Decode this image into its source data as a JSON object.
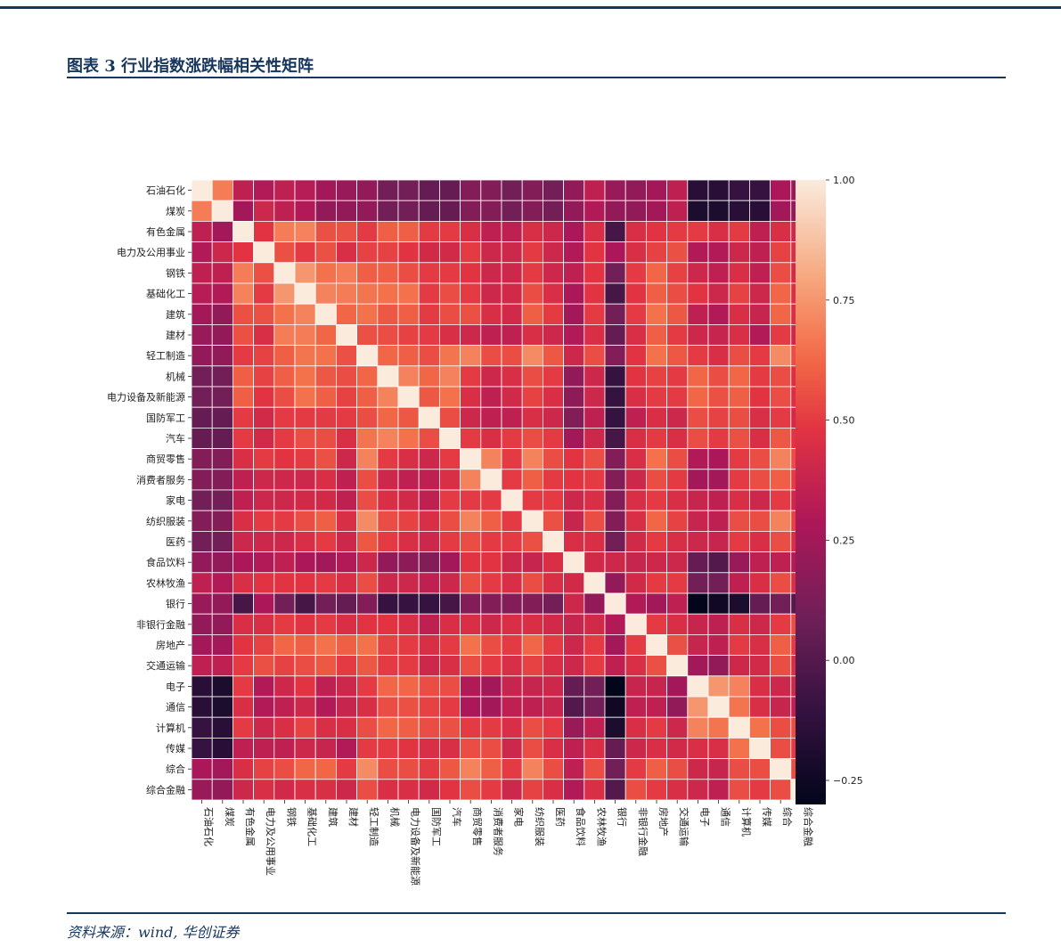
{
  "header": {
    "title": "图表 3   行业指数涨跌幅相关性矩阵"
  },
  "footer": {
    "source": "资料来源：wind, 华创证券"
  },
  "colors": {
    "brand": "#17365d",
    "cell_border": "#ffffff"
  },
  "chart_data": {
    "type": "heatmap",
    "title": "",
    "xlabel": "",
    "ylabel": "",
    "categories": [
      "石油石化",
      "煤炭",
      "有色金属",
      "电力及公用事业",
      "钢铁",
      "基础化工",
      "建筑",
      "建材",
      "轻工制造",
      "机械",
      "电力设备及新能源",
      "国防军工",
      "汽车",
      "商贸零售",
      "消费者服务",
      "家电",
      "纺织服装",
      "医药",
      "食品饮料",
      "农林牧渔",
      "银行",
      "非银行金融",
      "房地产",
      "交通运输",
      "电子",
      "通信",
      "计算机",
      "传媒",
      "综合",
      "综合金融"
    ],
    "colorbar": {
      "min": -0.3,
      "max": 1.0,
      "ticks": [
        1.0,
        0.75,
        0.5,
        0.25,
        0.0,
        -0.25
      ],
      "tick_labels": [
        "1.00",
        "0.75",
        "0.50",
        "0.25",
        "0.00",
        "−0.25"
      ],
      "colormap": "rocket"
    },
    "matrix": [
      [
        1.0,
        0.68,
        0.35,
        0.3,
        0.35,
        0.32,
        0.25,
        0.22,
        0.2,
        0.1,
        0.1,
        0.05,
        0.05,
        0.15,
        0.15,
        0.1,
        0.15,
        0.1,
        0.2,
        0.35,
        0.22,
        0.2,
        0.25,
        0.35,
        -0.15,
        -0.15,
        -0.1,
        -0.1,
        0.28,
        0.22
      ],
      [
        0.68,
        1.0,
        0.25,
        0.4,
        0.35,
        0.3,
        0.2,
        0.2,
        0.2,
        0.1,
        0.1,
        0.05,
        0.05,
        0.15,
        0.15,
        0.1,
        0.15,
        0.1,
        0.2,
        0.3,
        0.2,
        0.2,
        0.25,
        0.35,
        -0.2,
        -0.2,
        -0.15,
        -0.15,
        0.25,
        0.2
      ],
      [
        0.35,
        0.25,
        1.0,
        0.48,
        0.68,
        0.7,
        0.56,
        0.56,
        0.5,
        0.6,
        0.6,
        0.5,
        0.5,
        0.45,
        0.35,
        0.35,
        0.45,
        0.4,
        0.28,
        0.45,
        -0.05,
        0.45,
        0.48,
        0.5,
        0.5,
        0.45,
        0.5,
        0.35,
        0.45,
        0.4
      ],
      [
        0.3,
        0.4,
        0.48,
        1.0,
        0.56,
        0.5,
        0.56,
        0.45,
        0.52,
        0.52,
        0.48,
        0.42,
        0.42,
        0.5,
        0.4,
        0.4,
        0.5,
        0.4,
        0.3,
        0.48,
        0.28,
        0.45,
        0.52,
        0.56,
        0.3,
        0.3,
        0.4,
        0.35,
        0.52,
        0.45
      ],
      [
        0.35,
        0.35,
        0.68,
        0.56,
        1.0,
        0.75,
        0.65,
        0.68,
        0.6,
        0.6,
        0.55,
        0.5,
        0.5,
        0.48,
        0.4,
        0.4,
        0.5,
        0.4,
        0.35,
        0.48,
        0.1,
        0.5,
        0.62,
        0.52,
        0.4,
        0.35,
        0.45,
        0.35,
        0.55,
        0.42
      ],
      [
        0.32,
        0.3,
        0.7,
        0.5,
        0.75,
        1.0,
        0.7,
        0.68,
        0.66,
        0.65,
        0.65,
        0.5,
        0.55,
        0.5,
        0.4,
        0.42,
        0.55,
        0.45,
        0.28,
        0.48,
        -0.05,
        0.48,
        0.6,
        0.55,
        0.48,
        0.4,
        0.52,
        0.4,
        0.62,
        0.45
      ],
      [
        0.25,
        0.2,
        0.56,
        0.56,
        0.65,
        0.7,
        1.0,
        0.62,
        0.65,
        0.58,
        0.6,
        0.5,
        0.55,
        0.56,
        0.45,
        0.42,
        0.6,
        0.5,
        0.25,
        0.5,
        0.1,
        0.5,
        0.65,
        0.58,
        0.35,
        0.3,
        0.45,
        0.38,
        0.62,
        0.45
      ],
      [
        0.22,
        0.2,
        0.56,
        0.45,
        0.68,
        0.68,
        0.62,
        1.0,
        0.56,
        0.55,
        0.52,
        0.5,
        0.45,
        0.4,
        0.35,
        0.35,
        0.45,
        0.4,
        0.3,
        0.45,
        0.05,
        0.45,
        0.6,
        0.5,
        0.4,
        0.38,
        0.45,
        0.3,
        0.5,
        0.4
      ],
      [
        0.2,
        0.2,
        0.5,
        0.52,
        0.6,
        0.66,
        0.65,
        0.56,
        1.0,
        0.62,
        0.6,
        0.55,
        0.66,
        0.7,
        0.55,
        0.55,
        0.72,
        0.58,
        0.4,
        0.55,
        0.15,
        0.48,
        0.65,
        0.58,
        0.5,
        0.45,
        0.55,
        0.5,
        0.72,
        0.55
      ],
      [
        0.1,
        0.1,
        0.6,
        0.52,
        0.6,
        0.65,
        0.58,
        0.55,
        0.62,
        1.0,
        0.7,
        0.62,
        0.7,
        0.5,
        0.4,
        0.45,
        0.55,
        0.5,
        0.2,
        0.4,
        -0.1,
        0.48,
        0.52,
        0.5,
        0.62,
        0.55,
        0.62,
        0.5,
        0.55,
        0.45
      ],
      [
        0.1,
        0.1,
        0.6,
        0.48,
        0.55,
        0.65,
        0.6,
        0.52,
        0.6,
        0.7,
        1.0,
        0.58,
        0.65,
        0.45,
        0.35,
        0.42,
        0.52,
        0.45,
        0.18,
        0.4,
        -0.1,
        0.45,
        0.5,
        0.5,
        0.62,
        0.56,
        0.6,
        0.48,
        0.55,
        0.45
      ],
      [
        0.05,
        0.05,
        0.5,
        0.42,
        0.5,
        0.5,
        0.5,
        0.5,
        0.55,
        0.62,
        0.58,
        1.0,
        0.55,
        0.4,
        0.35,
        0.35,
        0.45,
        0.4,
        0.15,
        0.35,
        -0.1,
        0.35,
        0.45,
        0.4,
        0.55,
        0.52,
        0.55,
        0.45,
        0.5,
        0.42
      ],
      [
        0.05,
        0.05,
        0.5,
        0.42,
        0.5,
        0.55,
        0.55,
        0.45,
        0.66,
        0.7,
        0.65,
        0.55,
        1.0,
        0.5,
        0.45,
        0.5,
        0.55,
        0.5,
        0.25,
        0.4,
        -0.05,
        0.45,
        0.5,
        0.45,
        0.55,
        0.5,
        0.56,
        0.45,
        0.58,
        0.48
      ],
      [
        0.15,
        0.15,
        0.45,
        0.5,
        0.48,
        0.5,
        0.56,
        0.4,
        0.7,
        0.5,
        0.45,
        0.4,
        0.5,
        1.0,
        0.7,
        0.5,
        0.7,
        0.55,
        0.48,
        0.55,
        0.15,
        0.45,
        0.65,
        0.55,
        0.3,
        0.28,
        0.5,
        0.55,
        0.7,
        0.55
      ],
      [
        0.15,
        0.15,
        0.35,
        0.4,
        0.4,
        0.4,
        0.45,
        0.35,
        0.55,
        0.4,
        0.35,
        0.35,
        0.45,
        0.7,
        1.0,
        0.5,
        0.6,
        0.5,
        0.48,
        0.5,
        0.15,
        0.4,
        0.55,
        0.5,
        0.25,
        0.25,
        0.5,
        0.55,
        0.6,
        0.5
      ],
      [
        0.1,
        0.1,
        0.35,
        0.4,
        0.4,
        0.42,
        0.42,
        0.35,
        0.55,
        0.45,
        0.42,
        0.35,
        0.5,
        0.5,
        0.5,
        1.0,
        0.5,
        0.5,
        0.4,
        0.45,
        0.15,
        0.45,
        0.5,
        0.45,
        0.38,
        0.35,
        0.45,
        0.4,
        0.5,
        0.4
      ],
      [
        0.15,
        0.15,
        0.45,
        0.5,
        0.5,
        0.55,
        0.6,
        0.45,
        0.72,
        0.55,
        0.52,
        0.45,
        0.55,
        0.7,
        0.6,
        0.5,
        1.0,
        0.56,
        0.38,
        0.55,
        0.15,
        0.45,
        0.62,
        0.52,
        0.38,
        0.35,
        0.55,
        0.55,
        0.7,
        0.52
      ],
      [
        0.1,
        0.1,
        0.4,
        0.4,
        0.4,
        0.45,
        0.5,
        0.4,
        0.58,
        0.5,
        0.45,
        0.4,
        0.5,
        0.55,
        0.5,
        0.5,
        0.56,
        1.0,
        0.45,
        0.45,
        0.1,
        0.42,
        0.5,
        0.45,
        0.4,
        0.38,
        0.5,
        0.45,
        0.55,
        0.45
      ],
      [
        0.2,
        0.2,
        0.28,
        0.3,
        0.35,
        0.28,
        0.25,
        0.3,
        0.4,
        0.2,
        0.18,
        0.15,
        0.25,
        0.48,
        0.48,
        0.4,
        0.38,
        0.45,
        1.0,
        0.42,
        0.4,
        0.38,
        0.4,
        0.4,
        0.05,
        0.0,
        0.22,
        0.35,
        0.35,
        0.3
      ],
      [
        0.35,
        0.3,
        0.45,
        0.48,
        0.48,
        0.48,
        0.5,
        0.45,
        0.55,
        0.4,
        0.4,
        0.35,
        0.4,
        0.55,
        0.5,
        0.45,
        0.55,
        0.45,
        0.42,
        1.0,
        0.2,
        0.42,
        0.5,
        0.5,
        0.1,
        0.1,
        0.35,
        0.45,
        0.55,
        0.45
      ],
      [
        0.22,
        0.2,
        -0.05,
        0.28,
        0.1,
        -0.05,
        0.1,
        0.05,
        0.15,
        -0.1,
        -0.1,
        -0.1,
        -0.05,
        0.15,
        0.15,
        0.15,
        0.15,
        0.1,
        0.4,
        0.2,
        1.0,
        0.3,
        0.25,
        0.35,
        -0.3,
        -0.25,
        -0.2,
        0.05,
        0.1,
        0.0
      ],
      [
        0.2,
        0.2,
        0.45,
        0.45,
        0.5,
        0.48,
        0.5,
        0.45,
        0.48,
        0.48,
        0.45,
        0.35,
        0.45,
        0.45,
        0.4,
        0.45,
        0.45,
        0.42,
        0.38,
        0.42,
        0.3,
        1.0,
        0.5,
        0.45,
        0.38,
        0.35,
        0.45,
        0.4,
        0.5,
        0.55
      ],
      [
        0.25,
        0.25,
        0.48,
        0.52,
        0.62,
        0.6,
        0.65,
        0.6,
        0.65,
        0.52,
        0.5,
        0.45,
        0.5,
        0.65,
        0.55,
        0.5,
        0.62,
        0.5,
        0.4,
        0.5,
        0.25,
        0.5,
        1.0,
        0.56,
        0.38,
        0.35,
        0.5,
        0.45,
        0.6,
        0.5
      ],
      [
        0.35,
        0.35,
        0.5,
        0.56,
        0.52,
        0.55,
        0.58,
        0.5,
        0.58,
        0.5,
        0.5,
        0.4,
        0.45,
        0.55,
        0.5,
        0.45,
        0.52,
        0.45,
        0.4,
        0.5,
        0.35,
        0.45,
        0.56,
        1.0,
        0.25,
        0.2,
        0.4,
        0.42,
        0.55,
        0.45
      ],
      [
        -0.15,
        -0.2,
        0.5,
        0.3,
        0.4,
        0.48,
        0.35,
        0.4,
        0.5,
        0.62,
        0.62,
        0.55,
        0.55,
        0.3,
        0.25,
        0.38,
        0.38,
        0.4,
        0.05,
        0.1,
        -0.3,
        0.38,
        0.38,
        0.25,
        1.0,
        0.75,
        0.7,
        0.45,
        0.4,
        0.4
      ],
      [
        -0.15,
        -0.2,
        0.45,
        0.3,
        0.35,
        0.4,
        0.3,
        0.38,
        0.45,
        0.55,
        0.56,
        0.52,
        0.5,
        0.28,
        0.25,
        0.35,
        0.35,
        0.38,
        0.0,
        0.1,
        -0.25,
        0.35,
        0.35,
        0.2,
        0.75,
        1.0,
        0.66,
        0.45,
        0.38,
        0.35
      ],
      [
        -0.1,
        -0.15,
        0.5,
        0.4,
        0.45,
        0.52,
        0.45,
        0.45,
        0.55,
        0.62,
        0.6,
        0.55,
        0.56,
        0.5,
        0.5,
        0.45,
        0.55,
        0.5,
        0.22,
        0.35,
        -0.2,
        0.45,
        0.5,
        0.4,
        0.7,
        0.66,
        1.0,
        0.65,
        0.55,
        0.55
      ],
      [
        -0.1,
        -0.15,
        0.35,
        0.35,
        0.35,
        0.4,
        0.38,
        0.3,
        0.5,
        0.5,
        0.48,
        0.45,
        0.45,
        0.55,
        0.55,
        0.4,
        0.55,
        0.45,
        0.35,
        0.45,
        0.05,
        0.4,
        0.45,
        0.42,
        0.45,
        0.45,
        0.65,
        1.0,
        0.55,
        0.5
      ],
      [
        0.28,
        0.25,
        0.45,
        0.52,
        0.55,
        0.62,
        0.62,
        0.5,
        0.72,
        0.55,
        0.55,
        0.5,
        0.58,
        0.7,
        0.6,
        0.5,
        0.7,
        0.55,
        0.35,
        0.55,
        0.1,
        0.5,
        0.6,
        0.55,
        0.4,
        0.38,
        0.55,
        0.55,
        1.0,
        0.55
      ],
      [
        0.22,
        0.2,
        0.4,
        0.45,
        0.42,
        0.45,
        0.45,
        0.4,
        0.55,
        0.45,
        0.45,
        0.42,
        0.48,
        0.55,
        0.5,
        0.4,
        0.52,
        0.45,
        0.3,
        0.45,
        0.0,
        0.55,
        0.5,
        0.45,
        0.4,
        0.35,
        0.55,
        0.5,
        0.55,
        1.0
      ]
    ]
  }
}
